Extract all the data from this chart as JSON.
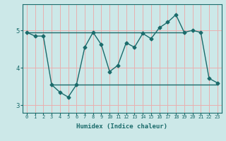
{
  "xlabel": "Humidex (Indice chaleur)",
  "ylabel": "",
  "bg_color": "#cce8e8",
  "line_color": "#1a6b6b",
  "grid_color": "#e8b0b0",
  "xlim": [
    -0.5,
    23.5
  ],
  "ylim": [
    2.8,
    5.7
  ],
  "yticks": [
    3,
    4,
    5
  ],
  "xtick_labels": [
    "0",
    "1",
    "2",
    "3",
    "4",
    "5",
    "6",
    "7",
    "8",
    "9",
    "10",
    "11",
    "12",
    "13",
    "14",
    "15",
    "16",
    "17",
    "18",
    "19",
    "20",
    "21",
    "22",
    "23"
  ],
  "main_line_x": [
    0,
    1,
    2,
    3,
    4,
    5,
    6,
    7,
    8,
    9,
    10,
    11,
    12,
    13,
    14,
    15,
    16,
    17,
    18,
    19,
    20,
    21,
    22,
    23
  ],
  "main_line_y": [
    4.95,
    4.85,
    4.85,
    3.55,
    3.35,
    3.22,
    3.55,
    4.55,
    4.95,
    4.62,
    3.9,
    4.07,
    4.67,
    4.55,
    4.92,
    4.78,
    5.07,
    5.22,
    5.42,
    4.95,
    5.0,
    4.95,
    3.72,
    3.6
  ],
  "hline1_y": 4.95,
  "hline1_x_start": 0,
  "hline1_x_end": 19,
  "hline2_y": 3.55,
  "hline2_x_start": 3,
  "hline2_x_end": 23
}
